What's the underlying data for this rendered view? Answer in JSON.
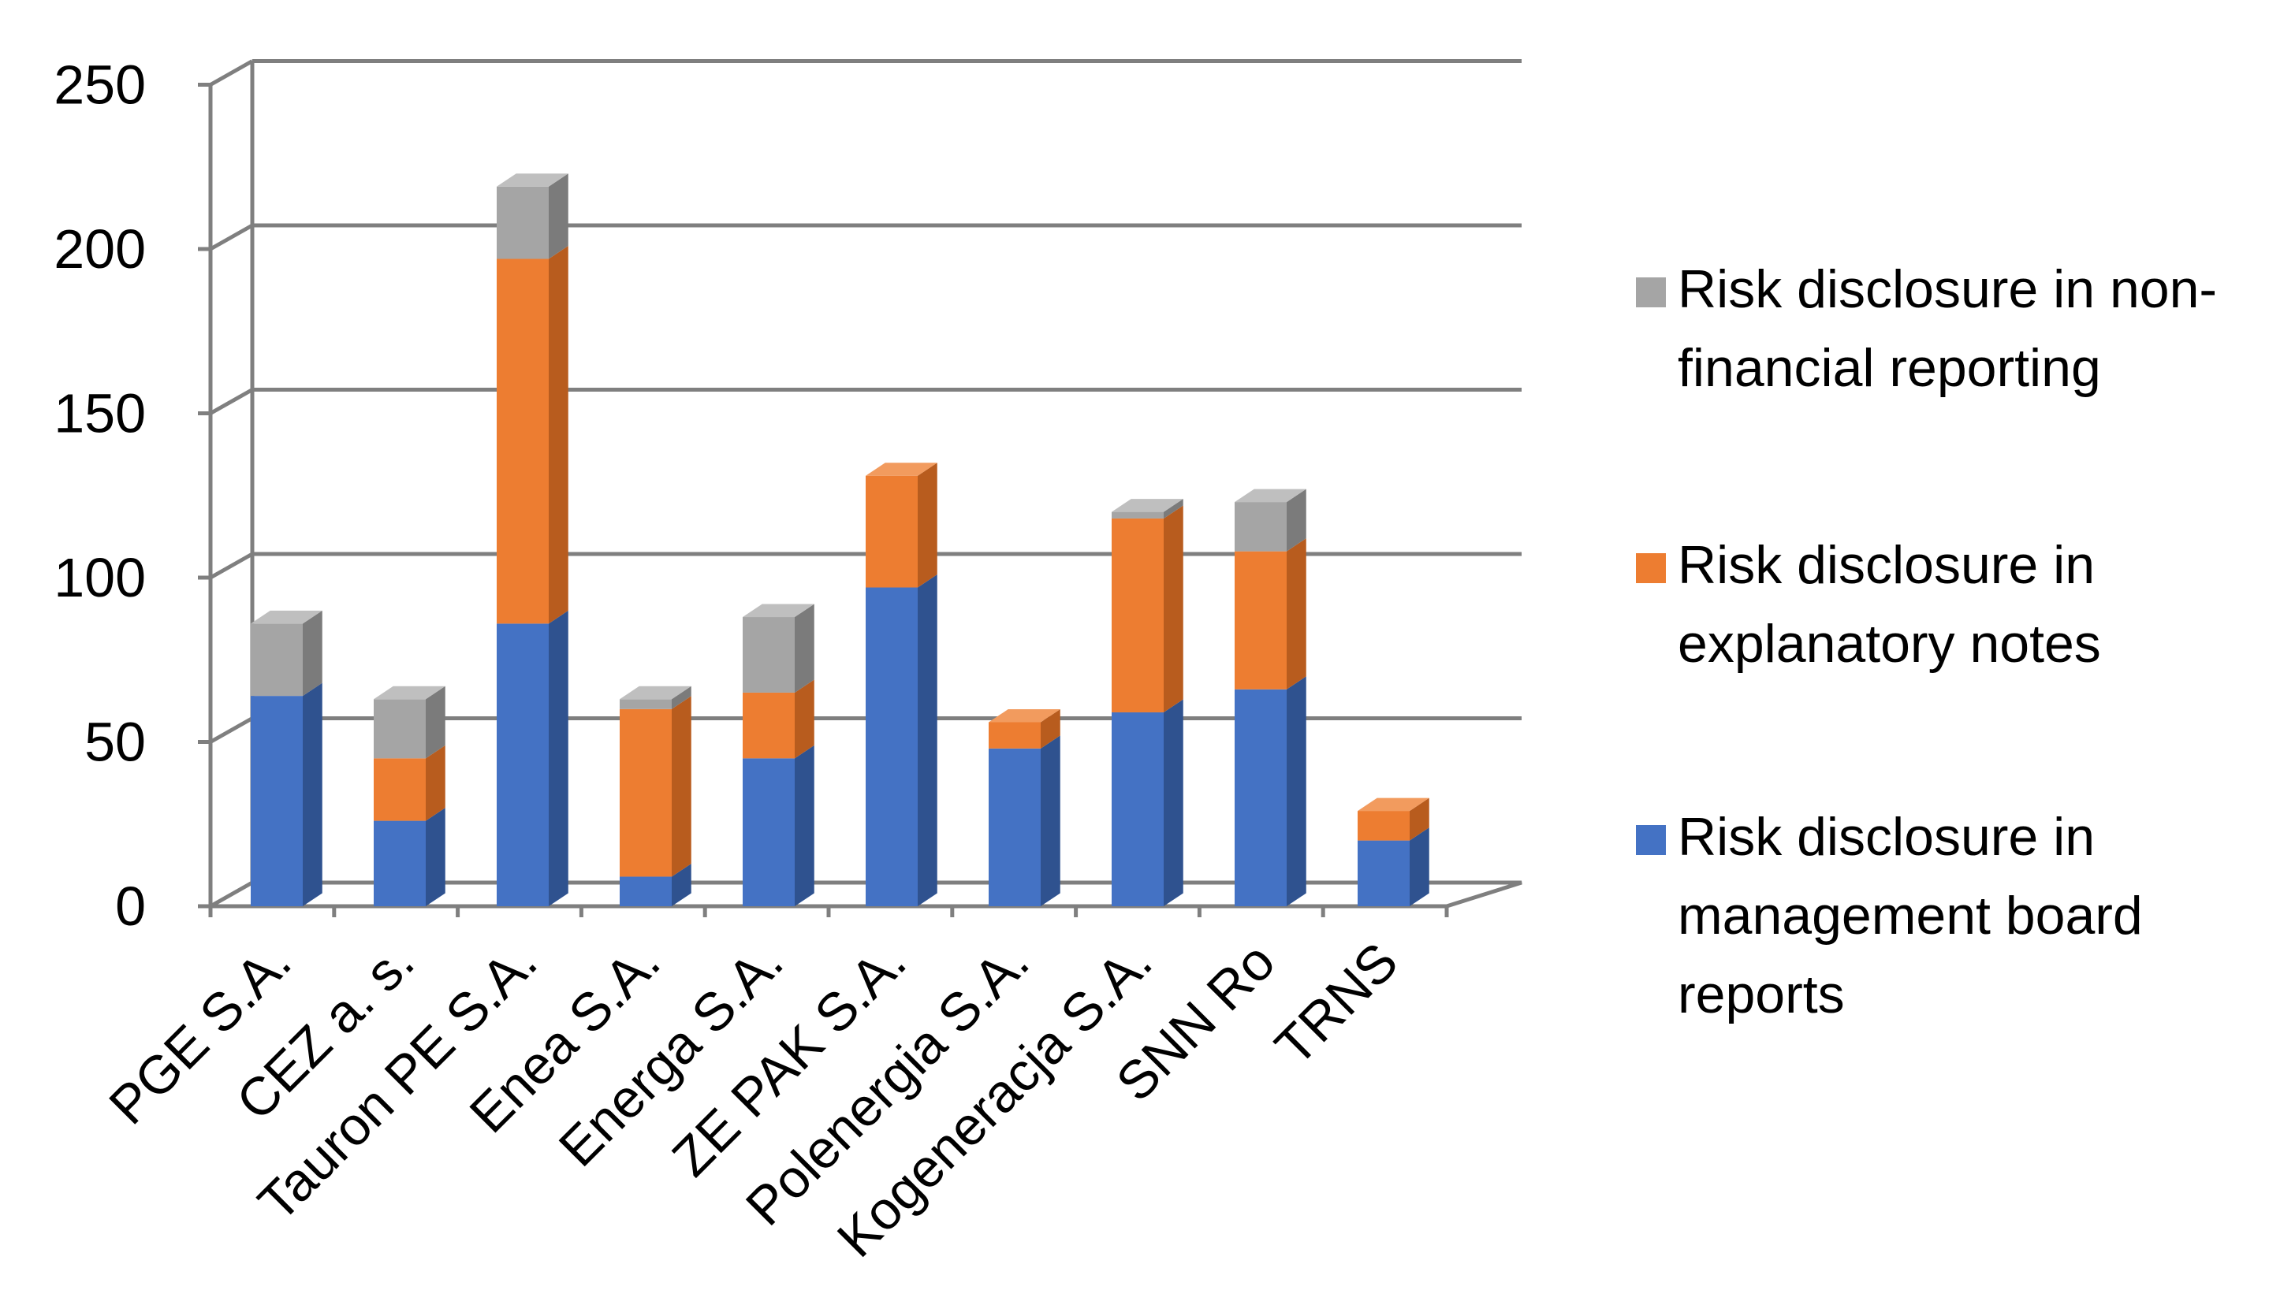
{
  "chart_data": {
    "type": "bar",
    "stacked": true,
    "three_d": true,
    "title": "",
    "xlabel": "",
    "ylabel": "",
    "ylim": [
      0,
      250
    ],
    "y_ticks": [
      "0",
      "50",
      "100",
      "150",
      "200",
      "250"
    ],
    "y_tick_values": [
      0,
      50,
      100,
      150,
      200,
      250
    ],
    "grid": true,
    "legend_position": "right",
    "categories": [
      "PGE S.A.",
      "CEZ a. s.",
      "Tauron PE S.A.",
      "Enea S.A.",
      "Energa S.A.",
      "ZE PAK S.A.",
      "Polenergia S.A.",
      "Kogeneracja S.A.",
      "SNN Ro",
      "TRNS"
    ],
    "series": [
      {
        "name": "Risk disclosure in management board reports",
        "legend_lines": [
          "Risk disclosure in",
          "management board",
          "reports"
        ],
        "color": "#4472C4",
        "side_color": "#2F528F",
        "top_color": "#6E8FD0",
        "values": [
          64,
          26,
          86,
          9,
          45,
          97,
          48,
          59,
          66,
          20
        ]
      },
      {
        "name": "Risk disclosure in explanatory notes",
        "legend_lines": [
          "Risk disclosure in",
          "explanatory notes"
        ],
        "color": "#ED7D31",
        "side_color": "#B85C1E",
        "top_color": "#F29B5E",
        "values": [
          0,
          19,
          111,
          51,
          20,
          34,
          8,
          59,
          42,
          9
        ]
      },
      {
        "name": "Risk disclosure in non-financial reporting",
        "legend_lines": [
          "Risk disclosure in non-",
          "financial reporting"
        ],
        "color": "#A5A5A5",
        "side_color": "#7B7B7B",
        "top_color": "#BFBFBF",
        "values": [
          22,
          18,
          22,
          3,
          23,
          0,
          0,
          2,
          15,
          0
        ]
      }
    ]
  }
}
